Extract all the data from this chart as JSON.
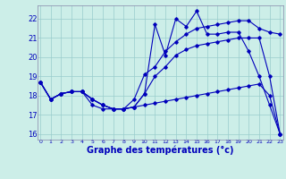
{
  "xlabel": "Graphe des températures (°c)",
  "bg_color": "#cceee8",
  "line_color": "#0000bb",
  "grid_color": "#99cccc",
  "ylim": [
    15.7,
    22.7
  ],
  "xlim": [
    -0.3,
    23.3
  ],
  "yticks": [
    16,
    17,
    18,
    19,
    20,
    21,
    22
  ],
  "xticks": [
    0,
    1,
    2,
    3,
    4,
    5,
    6,
    7,
    8,
    9,
    10,
    11,
    12,
    13,
    14,
    15,
    16,
    17,
    18,
    19,
    20,
    21,
    22,
    23
  ],
  "line1": [
    18.7,
    17.8,
    18.1,
    18.2,
    18.2,
    17.8,
    17.5,
    17.3,
    17.3,
    17.8,
    19.1,
    19.5,
    20.3,
    20.8,
    21.2,
    21.5,
    21.6,
    21.7,
    21.8,
    21.9,
    21.9,
    21.5,
    21.3,
    21.2
  ],
  "line2": [
    18.7,
    17.8,
    18.1,
    18.2,
    18.2,
    17.8,
    17.5,
    17.3,
    17.3,
    17.4,
    18.1,
    21.7,
    20.1,
    22.0,
    21.6,
    22.4,
    21.2,
    21.2,
    21.3,
    21.3,
    20.3,
    19.0,
    17.5,
    16.0
  ],
  "line3": [
    18.7,
    17.8,
    18.1,
    18.2,
    18.2,
    17.8,
    17.5,
    17.3,
    17.3,
    17.4,
    18.1,
    19.0,
    19.5,
    20.1,
    20.4,
    20.6,
    20.7,
    20.8,
    20.9,
    21.0,
    21.0,
    21.0,
    19.0,
    16.0
  ],
  "line4": [
    18.7,
    17.8,
    18.1,
    18.2,
    18.2,
    17.5,
    17.3,
    17.3,
    17.3,
    17.4,
    17.5,
    17.6,
    17.7,
    17.8,
    17.9,
    18.0,
    18.1,
    18.2,
    18.3,
    18.4,
    18.5,
    18.6,
    18.0,
    16.0
  ]
}
